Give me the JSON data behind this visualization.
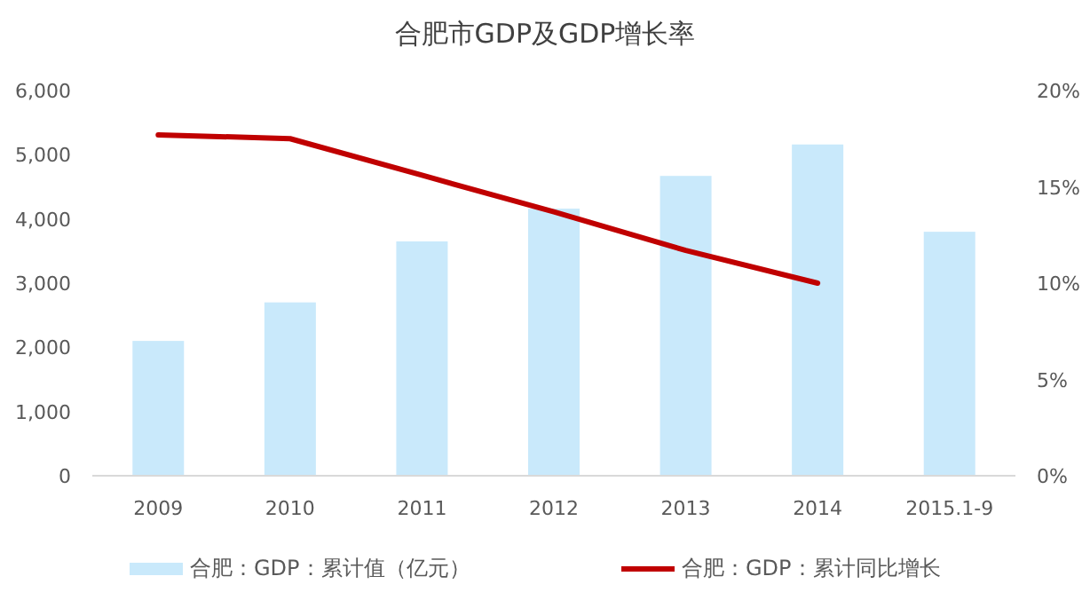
{
  "chart_data": {
    "type": "bar",
    "title": "合肥市GDP及GDP增长率",
    "categories": [
      "2009",
      "2010",
      "2011",
      "2012",
      "2013",
      "2014",
      "2015.1-9"
    ],
    "series": [
      {
        "name": "合肥：GDP：累计值（亿元）",
        "color": "#c9e9fb",
        "values": [
          2100,
          2700,
          3650,
          4160,
          4670,
          5160,
          3800
        ]
      },
      {
        "name": "合肥：GDP：累计同比增长",
        "type": "line",
        "axis": "y2",
        "color": "#c00000",
        "values": [
          17.7,
          17.5,
          15.6,
          13.7,
          11.7,
          10.0,
          null
        ]
      }
    ],
    "ylim": [
      0,
      6000
    ],
    "yticks": [
      {
        "value": 0,
        "label": "0"
      },
      {
        "value": 1000,
        "label": "1,000"
      },
      {
        "value": 2000,
        "label": "2,000"
      },
      {
        "value": 3000,
        "label": "3,000"
      },
      {
        "value": 4000,
        "label": "4,000"
      },
      {
        "value": 5000,
        "label": "5,000"
      },
      {
        "value": 6000,
        "label": "6,000"
      }
    ],
    "y2lim": [
      0,
      20
    ],
    "y2ticks": [
      {
        "value": 0,
        "label": "0%"
      },
      {
        "value": 5,
        "label": "5%"
      },
      {
        "value": 10,
        "label": "10%"
      },
      {
        "value": 15,
        "label": "15%"
      },
      {
        "value": 20,
        "label": "20%"
      }
    ],
    "legend": "bottom"
  }
}
